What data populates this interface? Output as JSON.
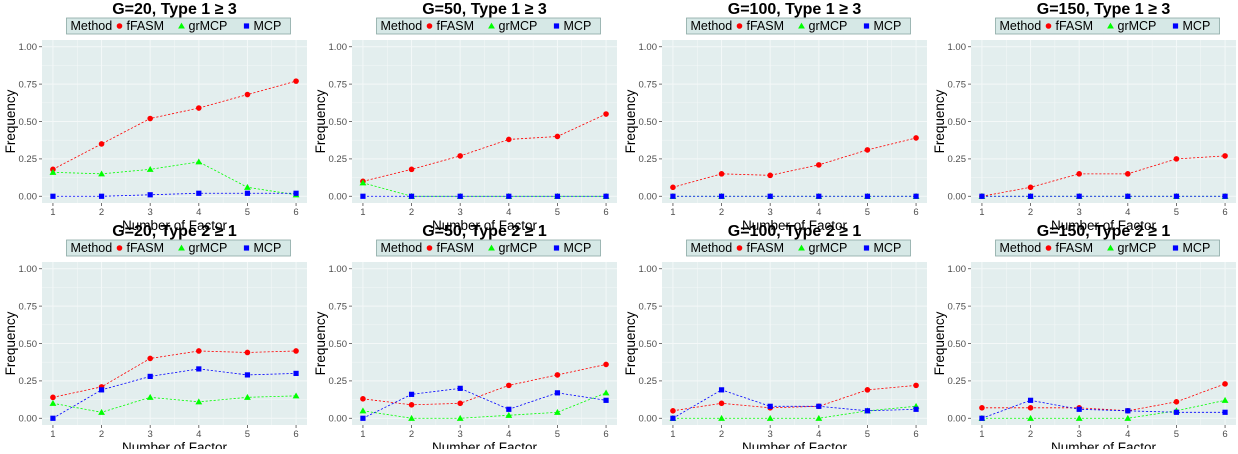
{
  "colors": {
    "panel_bg": "#e3eeee",
    "grid": "#f4f8f8",
    "legend_bg": "#d6e8e6",
    "legend_border": "#8aa8a4",
    "fFASM": "#ff0000",
    "grMCP": "#00ff00",
    "MCP": "#0000ff"
  },
  "chart_data": [
    {
      "type": "line",
      "title": "G=20, Type 1 ≥ 3",
      "xlabel": "Number of Factor",
      "ylabel": "Frequency",
      "x": [
        1,
        2,
        3,
        4,
        5,
        6
      ],
      "xticks": [
        "1",
        "2",
        "3",
        "4",
        "5",
        "6"
      ],
      "ylim": [
        0,
        1
      ],
      "yticks": [
        "0.00",
        "0.25",
        "0.50",
        "0.75",
        "1.00"
      ],
      "legend": {
        "title": "Method",
        "position": "top",
        "entries": [
          "fFASM",
          "grMCP",
          "MCP"
        ]
      },
      "series": [
        {
          "name": "fFASM",
          "marker": "circle",
          "values": [
            0.18,
            0.35,
            0.52,
            0.59,
            0.68,
            0.77
          ]
        },
        {
          "name": "grMCP",
          "marker": "triangle",
          "values": [
            0.16,
            0.15,
            0.18,
            0.23,
            0.06,
            0.01
          ]
        },
        {
          "name": "MCP",
          "marker": "square",
          "values": [
            0.0,
            0.0,
            0.01,
            0.02,
            0.02,
            0.02
          ]
        }
      ]
    },
    {
      "type": "line",
      "title": "G=50, Type 1 ≥ 3",
      "xlabel": "Number of Factor",
      "ylabel": "Frequency",
      "x": [
        1,
        2,
        3,
        4,
        5,
        6
      ],
      "xticks": [
        "1",
        "2",
        "3",
        "4",
        "5",
        "6"
      ],
      "ylim": [
        0,
        1
      ],
      "yticks": [
        "0.00",
        "0.25",
        "0.50",
        "0.75",
        "1.00"
      ],
      "legend": {
        "title": "Method",
        "position": "top",
        "entries": [
          "fFASM",
          "grMCP",
          "MCP"
        ]
      },
      "series": [
        {
          "name": "fFASM",
          "marker": "circle",
          "values": [
            0.1,
            0.18,
            0.27,
            0.38,
            0.4,
            0.55
          ]
        },
        {
          "name": "grMCP",
          "marker": "triangle",
          "values": [
            0.09,
            0.0,
            0.0,
            0.0,
            0.0,
            0.0
          ]
        },
        {
          "name": "MCP",
          "marker": "square",
          "values": [
            0.0,
            0.0,
            0.0,
            0.0,
            0.0,
            0.0
          ]
        }
      ]
    },
    {
      "type": "line",
      "title": "G=100, Type 1 ≥ 3",
      "xlabel": "Number of Factor",
      "ylabel": "Frequency",
      "x": [
        1,
        2,
        3,
        4,
        5,
        6
      ],
      "xticks": [
        "1",
        "2",
        "3",
        "4",
        "5",
        "6"
      ],
      "ylim": [
        0,
        1
      ],
      "yticks": [
        "0.00",
        "0.25",
        "0.50",
        "0.75",
        "1.00"
      ],
      "legend": {
        "title": "Method",
        "position": "top",
        "entries": [
          "fFASM",
          "grMCP",
          "MCP"
        ]
      },
      "series": [
        {
          "name": "fFASM",
          "marker": "circle",
          "values": [
            0.06,
            0.15,
            0.14,
            0.21,
            0.31,
            0.39
          ]
        },
        {
          "name": "grMCP",
          "marker": "triangle",
          "values": [
            0.0,
            0.0,
            0.0,
            0.0,
            0.0,
            0.0
          ]
        },
        {
          "name": "MCP",
          "marker": "square",
          "values": [
            0.0,
            0.0,
            0.0,
            0.0,
            0.0,
            0.0
          ]
        }
      ]
    },
    {
      "type": "line",
      "title": "G=150, Type 1 ≥ 3",
      "xlabel": "Number of Factor",
      "ylabel": "Frequency",
      "x": [
        1,
        2,
        3,
        4,
        5,
        6
      ],
      "xticks": [
        "1",
        "2",
        "3",
        "4",
        "5",
        "6"
      ],
      "ylim": [
        0,
        1
      ],
      "yticks": [
        "0.00",
        "0.25",
        "0.50",
        "0.75",
        "1.00"
      ],
      "legend": {
        "title": "Method",
        "position": "top",
        "entries": [
          "fFASM",
          "grMCP",
          "MCP"
        ]
      },
      "series": [
        {
          "name": "fFASM",
          "marker": "circle",
          "values": [
            0.0,
            0.06,
            0.15,
            0.15,
            0.25,
            0.27
          ]
        },
        {
          "name": "grMCP",
          "marker": "triangle",
          "values": [
            0.0,
            0.0,
            0.0,
            0.0,
            0.0,
            0.0
          ]
        },
        {
          "name": "MCP",
          "marker": "square",
          "values": [
            0.0,
            0.0,
            0.0,
            0.0,
            0.0,
            0.0
          ]
        }
      ]
    },
    {
      "type": "line",
      "title": "G=20, Type 2 ≥ 1",
      "xlabel": "Number of Factor",
      "ylabel": "Frequency",
      "x": [
        1,
        2,
        3,
        4,
        5,
        6
      ],
      "xticks": [
        "1",
        "2",
        "3",
        "4",
        "5",
        "6"
      ],
      "ylim": [
        0,
        1
      ],
      "yticks": [
        "0.00",
        "0.25",
        "0.50",
        "0.75",
        "1.00"
      ],
      "legend": {
        "title": "Method",
        "position": "top",
        "entries": [
          "fFASM",
          "grMCP",
          "MCP"
        ]
      },
      "series": [
        {
          "name": "fFASM",
          "marker": "circle",
          "values": [
            0.14,
            0.21,
            0.4,
            0.45,
            0.44,
            0.45
          ]
        },
        {
          "name": "grMCP",
          "marker": "triangle",
          "values": [
            0.1,
            0.04,
            0.14,
            0.11,
            0.14,
            0.15
          ]
        },
        {
          "name": "MCP",
          "marker": "square",
          "values": [
            0.0,
            0.19,
            0.28,
            0.33,
            0.29,
            0.3
          ]
        }
      ]
    },
    {
      "type": "line",
      "title": "G=50, Type 2 ≥ 1",
      "xlabel": "Number of Factor",
      "ylabel": "Frequency",
      "x": [
        1,
        2,
        3,
        4,
        5,
        6
      ],
      "xticks": [
        "1",
        "2",
        "3",
        "4",
        "5",
        "6"
      ],
      "ylim": [
        0,
        1
      ],
      "yticks": [
        "0.00",
        "0.25",
        "0.50",
        "0.75",
        "1.00"
      ],
      "legend": {
        "title": "Method",
        "position": "top",
        "entries": [
          "fFASM",
          "grMCP",
          "MCP"
        ]
      },
      "series": [
        {
          "name": "fFASM",
          "marker": "circle",
          "values": [
            0.13,
            0.09,
            0.1,
            0.22,
            0.29,
            0.36
          ]
        },
        {
          "name": "grMCP",
          "marker": "triangle",
          "values": [
            0.05,
            0.0,
            0.0,
            0.02,
            0.04,
            0.17
          ]
        },
        {
          "name": "MCP",
          "marker": "square",
          "values": [
            0.0,
            0.16,
            0.2,
            0.06,
            0.17,
            0.12
          ]
        }
      ]
    },
    {
      "type": "line",
      "title": "G=100, Type 2 ≥ 1",
      "xlabel": "Number of Factor",
      "ylabel": "Frequency",
      "x": [
        1,
        2,
        3,
        4,
        5,
        6
      ],
      "xticks": [
        "1",
        "2",
        "3",
        "4",
        "5",
        "6"
      ],
      "ylim": [
        0,
        1
      ],
      "yticks": [
        "0.00",
        "0.25",
        "0.50",
        "0.75",
        "1.00"
      ],
      "legend": {
        "title": "Method",
        "position": "top",
        "entries": [
          "fFASM",
          "grMCP",
          "MCP"
        ]
      },
      "series": [
        {
          "name": "fFASM",
          "marker": "circle",
          "values": [
            0.05,
            0.1,
            0.07,
            0.08,
            0.19,
            0.22
          ]
        },
        {
          "name": "grMCP",
          "marker": "triangle",
          "values": [
            0.0,
            0.0,
            0.0,
            0.0,
            0.05,
            0.08
          ]
        },
        {
          "name": "MCP",
          "marker": "square",
          "values": [
            0.0,
            0.19,
            0.08,
            0.08,
            0.05,
            0.06
          ]
        }
      ]
    },
    {
      "type": "line",
      "title": "G=150, Type 2 ≥ 1",
      "xlabel": "Number of Factor",
      "ylabel": "Frequency",
      "x": [
        1,
        2,
        3,
        4,
        5,
        6
      ],
      "xticks": [
        "1",
        "2",
        "3",
        "4",
        "5",
        "6"
      ],
      "ylim": [
        0,
        1
      ],
      "yticks": [
        "0.00",
        "0.25",
        "0.50",
        "0.75",
        "1.00"
      ],
      "legend": {
        "title": "Method",
        "position": "top",
        "entries": [
          "fFASM",
          "grMCP",
          "MCP"
        ]
      },
      "series": [
        {
          "name": "fFASM",
          "marker": "circle",
          "values": [
            0.07,
            0.07,
            0.07,
            0.05,
            0.11,
            0.23
          ]
        },
        {
          "name": "grMCP",
          "marker": "triangle",
          "values": [
            0.0,
            0.0,
            0.0,
            0.0,
            0.05,
            0.12
          ]
        },
        {
          "name": "MCP",
          "marker": "square",
          "values": [
            0.0,
            0.12,
            0.06,
            0.05,
            0.04,
            0.04
          ]
        }
      ]
    }
  ]
}
